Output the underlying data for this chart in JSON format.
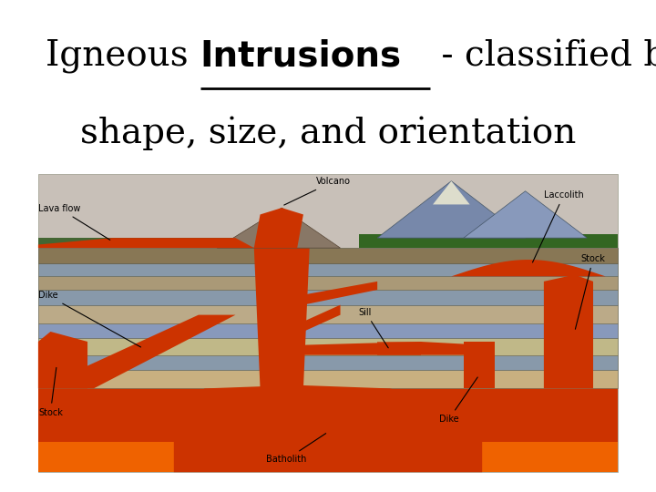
{
  "bg_color": "#ffffff",
  "title_line1_prefix": "Igneous ",
  "title_line1_word": "Intrusions",
  "title_line1_suffix": " - classified by",
  "title_line2": "shape, size, and orientation",
  "title_fontsize": 28,
  "title_color": "#000000",
  "fig_width": 7.2,
  "fig_height": 5.4,
  "layer_colors": [
    "#c8a87a",
    "#8899aa",
    "#c0b090",
    "#99aacc",
    "#c8b890",
    "#aab898",
    "#9aaa88"
  ],
  "lava_color": "#cc3300",
  "lava_hot_color": "#ff7700",
  "mountain_color": "#7788aa",
  "mountain2_color": "#8899bb",
  "veg_color": "#336622",
  "surface_color": "#887755",
  "label_fontsize": 7
}
